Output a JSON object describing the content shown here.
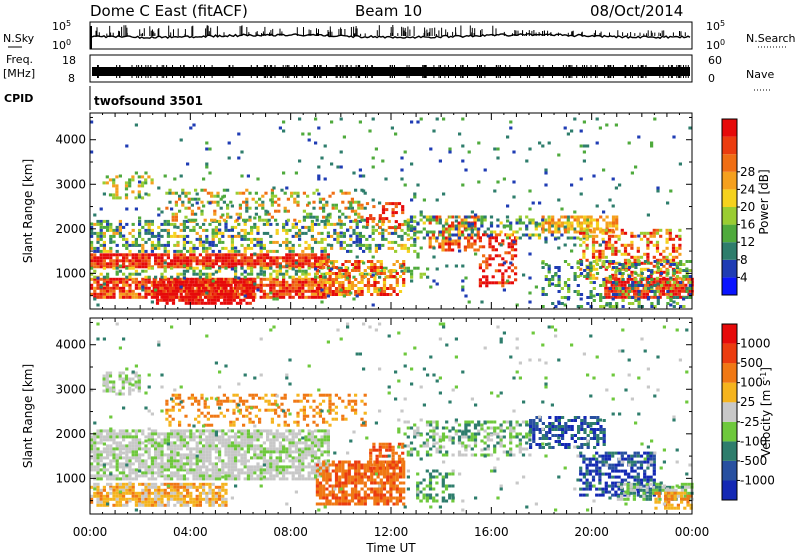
{
  "header": {
    "station": "Dome C East (fitACF)",
    "beam": "Beam 10",
    "date": "08/Oct/2014"
  },
  "panels": {
    "nsky": {
      "label": "N.Sky",
      "tick_top": "10^5",
      "tick_bottom": "10^0",
      "right_label": "N.Search",
      "right_tick_top": "10^5",
      "right_tick_bottom": "10^0"
    },
    "freq": {
      "label_line1": "Freq.",
      "label_line2": "[MHz]",
      "tick_top": "18",
      "tick_bottom": "8",
      "right_label": "Nave",
      "right_tick_top": "60",
      "right_tick_bottom": "0"
    },
    "cpid": {
      "label": "CPID",
      "value": "twofsound 3501"
    }
  },
  "chart_data": [
    {
      "type": "heatmap",
      "name": "power",
      "ylabel": "Slant Range [km]",
      "xlabel": "Time UT",
      "x_ticks": [
        "00:00",
        "04:00",
        "08:00",
        "12:00",
        "16:00",
        "20:00",
        "00:00"
      ],
      "y_ticks": [
        1000,
        2000,
        3000,
        4000
      ],
      "ylim": [
        200,
        4600
      ],
      "xlim_hours": [
        0,
        24
      ],
      "colorbar": {
        "label": "Power [dB]",
        "ticks": [
          "4",
          "8",
          "12",
          "16",
          "20",
          "24",
          "28"
        ],
        "colors": [
          "#0a14ff",
          "#1f3cb4",
          "#2e7d6c",
          "#4faa3c",
          "#9acd32",
          "#f5d21e",
          "#f5a01e",
          "#f06e14",
          "#eb3c0f",
          "#e60a0a"
        ]
      },
      "regions": [
        {
          "t0": 0.0,
          "t1": 9.5,
          "r0": 1150,
          "r1": 1450,
          "palette": [
            7,
            8,
            9,
            9
          ],
          "density": 0.9
        },
        {
          "t0": 0.0,
          "t1": 9.5,
          "r0": 480,
          "r1": 900,
          "palette": [
            6,
            7,
            8,
            9,
            9
          ],
          "density": 0.85
        },
        {
          "t0": 2.5,
          "t1": 6.5,
          "r0": 300,
          "r1": 900,
          "palette": [
            8,
            9,
            9,
            9
          ],
          "density": 0.7
        },
        {
          "t0": 0.0,
          "t1": 13.0,
          "r0": 1450,
          "r1": 2200,
          "palette": [
            1,
            2,
            3,
            4,
            5,
            6
          ],
          "density": 0.45
        },
        {
          "t0": 0.0,
          "t1": 13.5,
          "r0": 900,
          "r1": 1150,
          "palette": [
            2,
            3,
            4,
            5
          ],
          "density": 0.4
        },
        {
          "t0": 3.0,
          "t1": 11.0,
          "r0": 2200,
          "r1": 2900,
          "palette": [
            2,
            3,
            4,
            6,
            7
          ],
          "density": 0.3
        },
        {
          "t0": 0.5,
          "t1": 2.5,
          "r0": 2700,
          "r1": 3200,
          "palette": [
            3,
            4,
            6
          ],
          "density": 0.4
        },
        {
          "t0": 9.0,
          "t1": 12.5,
          "r0": 500,
          "r1": 1300,
          "palette": [
            5,
            6,
            7,
            8,
            9
          ],
          "density": 0.55
        },
        {
          "t0": 11.0,
          "t1": 12.5,
          "r0": 2000,
          "r1": 2600,
          "palette": [
            7,
            8,
            9
          ],
          "density": 0.35
        },
        {
          "t0": 13.5,
          "t1": 15.5,
          "r0": 1500,
          "r1": 2300,
          "palette": [
            6,
            7,
            8,
            9
          ],
          "density": 0.55
        },
        {
          "t0": 15.5,
          "t1": 17.0,
          "r0": 700,
          "r1": 1900,
          "palette": [
            7,
            8,
            9,
            9
          ],
          "density": 0.4
        },
        {
          "t0": 12.5,
          "t1": 20.0,
          "r0": 1800,
          "r1": 2300,
          "palette": [
            1,
            2,
            3,
            4,
            5
          ],
          "density": 0.35
        },
        {
          "t0": 18.0,
          "t1": 21.0,
          "r0": 1900,
          "r1": 2300,
          "palette": [
            5,
            6,
            7
          ],
          "density": 0.6
        },
        {
          "t0": 20.5,
          "t1": 24.0,
          "r0": 450,
          "r1": 900,
          "palette": [
            7,
            8,
            9,
            9
          ],
          "density": 0.9
        },
        {
          "t0": 19.5,
          "t1": 23.5,
          "r0": 900,
          "r1": 2000,
          "palette": [
            4,
            5,
            6,
            7,
            8,
            9
          ],
          "density": 0.5
        },
        {
          "t0": 18.0,
          "t1": 24.0,
          "r0": 250,
          "r1": 1300,
          "palette": [
            1,
            2,
            3,
            4
          ],
          "density": 0.3
        },
        {
          "t0": 0.0,
          "t1": 24.0,
          "r0": 250,
          "r1": 4500,
          "palette": [
            1,
            2,
            3
          ],
          "density": 0.03
        }
      ]
    },
    {
      "type": "heatmap",
      "name": "velocity",
      "ylabel": "Slant Range [km]",
      "xlabel": "Time UT",
      "x_ticks": [
        "00:00",
        "04:00",
        "08:00",
        "12:00",
        "16:00",
        "20:00",
        "00:00"
      ],
      "y_ticks": [
        1000,
        2000,
        3000,
        4000
      ],
      "ylim": [
        200,
        4600
      ],
      "xlim_hours": [
        0,
        24
      ],
      "colorbar": {
        "label": "Velocity [m s^-1]",
        "ticks": [
          "1000",
          "500",
          "100",
          "25",
          "-25",
          "-100",
          "-500",
          "-1000"
        ],
        "colors": [
          "#1428b4",
          "#2850a0",
          "#2e7d6c",
          "#6ec83c",
          "#c8c8c8",
          "#f5b41e",
          "#f07814",
          "#eb3c0f",
          "#e60a0a"
        ]
      },
      "regions": [
        {
          "t0": 0.0,
          "t1": 9.5,
          "r0": 1000,
          "r1": 2100,
          "palette": [
            4,
            4,
            4,
            3
          ],
          "density": 0.75
        },
        {
          "t0": 0.0,
          "t1": 5.5,
          "r0": 400,
          "r1": 900,
          "palette": [
            5,
            5,
            6,
            4
          ],
          "density": 0.8
        },
        {
          "t0": 0.5,
          "t1": 2.0,
          "r0": 2900,
          "r1": 3400,
          "palette": [
            4,
            3
          ],
          "density": 0.5
        },
        {
          "t0": 3.0,
          "t1": 11.0,
          "r0": 2200,
          "r1": 2900,
          "palette": [
            6,
            6,
            5
          ],
          "density": 0.3
        },
        {
          "t0": 9.0,
          "t1": 12.5,
          "r0": 400,
          "r1": 1400,
          "palette": [
            6,
            6,
            7
          ],
          "density": 0.75
        },
        {
          "t0": 11.0,
          "t1": 12.5,
          "r0": 1200,
          "r1": 1800,
          "palette": [
            6,
            7
          ],
          "density": 0.5
        },
        {
          "t0": 12.5,
          "t1": 17.5,
          "r0": 1500,
          "r1": 2300,
          "palette": [
            2,
            3,
            4
          ],
          "density": 0.45
        },
        {
          "t0": 13.0,
          "t1": 14.5,
          "r0": 500,
          "r1": 1200,
          "palette": [
            2,
            3
          ],
          "density": 0.4
        },
        {
          "t0": 17.5,
          "t1": 20.5,
          "r0": 1700,
          "r1": 2400,
          "palette": [
            0,
            1,
            2
          ],
          "density": 0.55
        },
        {
          "t0": 19.5,
          "t1": 22.5,
          "r0": 600,
          "r1": 1600,
          "palette": [
            0,
            1,
            0,
            2
          ],
          "density": 0.6
        },
        {
          "t0": 21.0,
          "t1": 24.0,
          "r0": 500,
          "r1": 900,
          "palette": [
            2,
            3,
            4
          ],
          "density": 0.7
        },
        {
          "t0": 22.5,
          "t1": 24.0,
          "r0": 300,
          "r1": 700,
          "palette": [
            5,
            6
          ],
          "density": 0.6
        },
        {
          "t0": 0.0,
          "t1": 24.0,
          "r0": 250,
          "r1": 4500,
          "palette": [
            3,
            4,
            2
          ],
          "density": 0.025
        }
      ]
    }
  ]
}
